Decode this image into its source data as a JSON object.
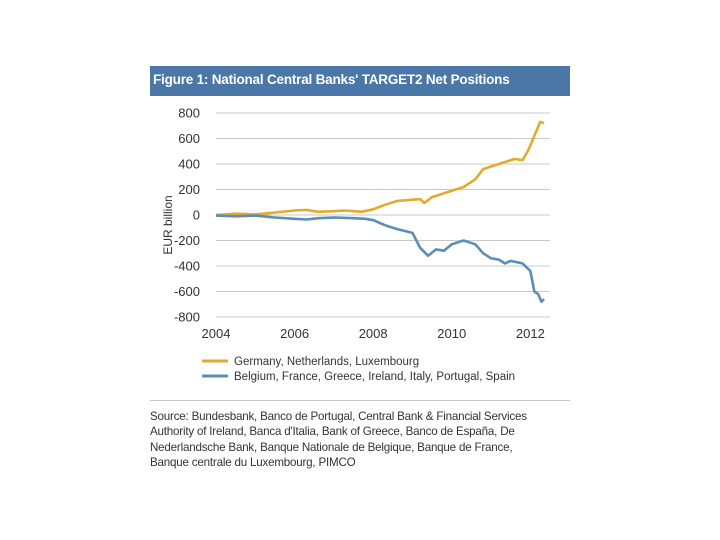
{
  "figure": {
    "title": "Figure 1: National Central Banks' TARGET2 Net Positions",
    "source_lines": [
      "Source: Bundesbank, Banco de Portugal, Central Bank & Financial Services",
      "Authority of Ireland, Banca d'Italia, Bank of Greece, Banco de España, De",
      "Nederlandsche Bank, Banque Nationale de Belgique,  Banque de France,",
      "Banque centrale du Luxembourg, PIMCO"
    ]
  },
  "colors": {
    "title_bar": "#4a77a8",
    "series_core": "#e3aa2b",
    "series_periphery": "#5b8db8"
  },
  "chart_data": {
    "type": "line",
    "title": "",
    "xlabel": "",
    "ylabel": "EUR billion",
    "xlim": [
      2004,
      2012.5
    ],
    "ylim": [
      -800,
      800
    ],
    "x_ticks": [
      "2004",
      "2006",
      "2008",
      "2010",
      "2012"
    ],
    "y_ticks": [
      "800",
      "600",
      "400",
      "200",
      "0",
      "-200",
      "-400",
      "-600",
      "-800"
    ],
    "grid": "horizontal",
    "legend": "bottom",
    "series": [
      {
        "name": "Germany, Netherlands, Luxembourg",
        "color": "#e3aa2b",
        "points": [
          [
            2004.0,
            0
          ],
          [
            2004.5,
            10
          ],
          [
            2005.0,
            5
          ],
          [
            2005.5,
            20
          ],
          [
            2006.0,
            35
          ],
          [
            2006.3,
            40
          ],
          [
            2006.6,
            25
          ],
          [
            2007.0,
            30
          ],
          [
            2007.3,
            35
          ],
          [
            2007.7,
            25
          ],
          [
            2008.0,
            45
          ],
          [
            2008.3,
            80
          ],
          [
            2008.6,
            110
          ],
          [
            2009.0,
            120
          ],
          [
            2009.2,
            125
          ],
          [
            2009.3,
            95
          ],
          [
            2009.5,
            140
          ],
          [
            2009.8,
            170
          ],
          [
            2010.0,
            190
          ],
          [
            2010.3,
            220
          ],
          [
            2010.6,
            280
          ],
          [
            2010.8,
            360
          ],
          [
            2011.0,
            380
          ],
          [
            2011.2,
            400
          ],
          [
            2011.4,
            420
          ],
          [
            2011.6,
            440
          ],
          [
            2011.8,
            430
          ],
          [
            2011.95,
            510
          ],
          [
            2012.1,
            620
          ],
          [
            2012.25,
            730
          ],
          [
            2012.35,
            720
          ]
        ]
      },
      {
        "name": "Belgium, France, Greece, Ireland, Italy, Portugal, Spain",
        "color": "#5b8db8",
        "points": [
          [
            2004.0,
            -5
          ],
          [
            2004.5,
            -10
          ],
          [
            2005.0,
            -5
          ],
          [
            2005.5,
            -20
          ],
          [
            2006.0,
            -30
          ],
          [
            2006.3,
            -35
          ],
          [
            2006.6,
            -25
          ],
          [
            2007.0,
            -20
          ],
          [
            2007.5,
            -25
          ],
          [
            2007.8,
            -30
          ],
          [
            2008.0,
            -40
          ],
          [
            2008.3,
            -80
          ],
          [
            2008.6,
            -110
          ],
          [
            2009.0,
            -140
          ],
          [
            2009.2,
            -260
          ],
          [
            2009.4,
            -320
          ],
          [
            2009.6,
            -270
          ],
          [
            2009.8,
            -280
          ],
          [
            2010.0,
            -230
          ],
          [
            2010.3,
            -200
          ],
          [
            2010.6,
            -230
          ],
          [
            2010.8,
            -300
          ],
          [
            2011.0,
            -340
          ],
          [
            2011.2,
            -350
          ],
          [
            2011.35,
            -380
          ],
          [
            2011.5,
            -360
          ],
          [
            2011.8,
            -380
          ],
          [
            2012.0,
            -440
          ],
          [
            2012.1,
            -600
          ],
          [
            2012.2,
            -620
          ],
          [
            2012.28,
            -680
          ],
          [
            2012.35,
            -660
          ]
        ]
      }
    ]
  }
}
